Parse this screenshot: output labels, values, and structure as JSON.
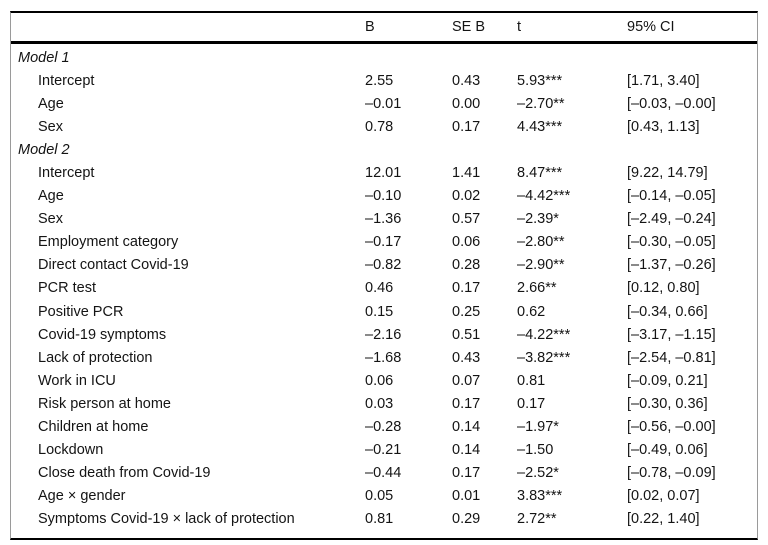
{
  "colors": {
    "background": "#ffffff",
    "text": "#141414",
    "rule_heavy": "#000000",
    "rule_side": "#9a9a9a"
  },
  "table": {
    "headers": {
      "label": "",
      "b": "B",
      "se_b": "SE B",
      "t": "t",
      "ci": "95% CI"
    },
    "rows": [
      {
        "type": "model",
        "label": "Model 1",
        "b": "",
        "se_b": "",
        "t": "",
        "ci": ""
      },
      {
        "type": "item",
        "label": "Intercept",
        "b": "2.55",
        "se_b": "0.43",
        "t": "5.93***",
        "ci": "[1.71, 3.40]"
      },
      {
        "type": "item",
        "label": "Age",
        "b": "–0.01",
        "se_b": "0.00",
        "t": "–2.70**",
        "ci": "[–0.03, –0.00]"
      },
      {
        "type": "item",
        "label": "Sex",
        "b": "0.78",
        "se_b": "0.17",
        "t": "4.43***",
        "ci": "[0.43, 1.13]"
      },
      {
        "type": "model",
        "label": "Model 2",
        "b": "",
        "se_b": "",
        "t": "",
        "ci": ""
      },
      {
        "type": "item",
        "label": "Intercept",
        "b": "12.01",
        "se_b": "1.41",
        "t": "8.47***",
        "ci": "[9.22, 14.79]"
      },
      {
        "type": "item",
        "label": "Age",
        "b": "–0.10",
        "se_b": "0.02",
        "t": "–4.42***",
        "ci": "[–0.14, –0.05]"
      },
      {
        "type": "item",
        "label": "Sex",
        "b": "–1.36",
        "se_b": "0.57",
        "t": "–2.39*",
        "ci": "[–2.49, –0.24]"
      },
      {
        "type": "item",
        "label": "Employment category",
        "b": "–0.17",
        "se_b": "0.06",
        "t": "–2.80**",
        "ci": "[–0.30, –0.05]"
      },
      {
        "type": "item",
        "label": "Direct contact Covid-19",
        "b": "–0.82",
        "se_b": "0.28",
        "t": "–2.90**",
        "ci": "[–1.37, –0.26]"
      },
      {
        "type": "item",
        "label": "PCR test",
        "b": "0.46",
        "se_b": "0.17",
        "t": "2.66**",
        "ci": "[0.12, 0.80]"
      },
      {
        "type": "item",
        "label": "Positive PCR",
        "b": "0.15",
        "se_b": "0.25",
        "t": "0.62",
        "ci": "[–0.34, 0.66]"
      },
      {
        "type": "item",
        "label": "Covid-19 symptoms",
        "b": "–2.16",
        "se_b": "0.51",
        "t": "–4.22***",
        "ci": "[–3.17, –1.15]"
      },
      {
        "type": "item",
        "label": "Lack of protection",
        "b": "–1.68",
        "se_b": "0.43",
        "t": "–3.82***",
        "ci": "[–2.54, –0.81]"
      },
      {
        "type": "item",
        "label": "Work in ICU",
        "b": "0.06",
        "se_b": "0.07",
        "t": "0.81",
        "ci": "[–0.09, 0.21]"
      },
      {
        "type": "item",
        "label": "Risk person at home",
        "b": "0.03",
        "se_b": "0.17",
        "t": "0.17",
        "ci": "[–0.30, 0.36]"
      },
      {
        "type": "item",
        "label": "Children at home",
        "b": "–0.28",
        "se_b": "0.14",
        "t": "–1.97*",
        "ci": "[–0.56, –0.00]"
      },
      {
        "type": "item",
        "label": "Lockdown",
        "b": "–0.21",
        "se_b": "0.14",
        "t": "–1.50",
        "ci": "[–0.49, 0.06]"
      },
      {
        "type": "item",
        "label": "Close death from Covid-19",
        "b": "–0.44",
        "se_b": "0.17",
        "t": "–2.52*",
        "ci": "[–0.78, –0.09]"
      },
      {
        "type": "item",
        "label": "Age × gender",
        "b": "0.05",
        "se_b": "0.01",
        "t": "3.83***",
        "ci": "[0.02, 0.07]"
      },
      {
        "type": "item",
        "label": "Symptoms Covid-19 × lack of protection",
        "b": "0.81",
        "se_b": "0.29",
        "t": "2.72**",
        "ci": "[0.22, 1.40]"
      }
    ]
  }
}
